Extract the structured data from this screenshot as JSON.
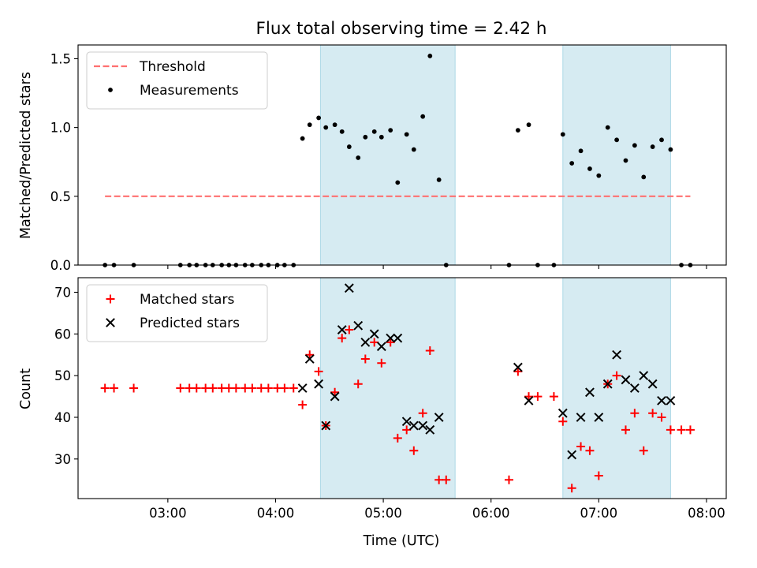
{
  "figure": {
    "title": "Flux total observing time = 2.42 h",
    "xlabel": "Time (UTC)"
  },
  "colors": {
    "threshold": "#ff7070",
    "measurement": "#000000",
    "matched": "#ff0000",
    "predicted": "#000000",
    "span_fill": "#add8e6"
  },
  "chart_data": [
    {
      "type": "scatter",
      "panel": "top",
      "ylabel": "Matched/Predicted stars",
      "xlim": [
        "02:10",
        "08:11"
      ],
      "ylim": [
        0,
        1.6
      ],
      "x_ticks": [
        "03:00",
        "04:00",
        "05:00",
        "06:00",
        "07:00",
        "08:00"
      ],
      "y_ticks": [
        "0.0",
        "0.5",
        "1.0",
        "1.5"
      ],
      "x_tick_labels_shown": false,
      "grid": false,
      "legend_position": "upper-left",
      "shaded_spans": [
        [
          "04:25",
          "05:40"
        ],
        [
          "06:40",
          "07:40"
        ]
      ],
      "threshold": {
        "name": "Threshold",
        "style": "dashed",
        "y": 0.5,
        "x_range": [
          "02:25",
          "07:51"
        ]
      },
      "series": [
        {
          "name": "Measurements",
          "marker": "dot",
          "points": [
            [
              "02:25",
              0
            ],
            [
              "02:30",
              0
            ],
            [
              "02:41",
              0
            ],
            [
              "03:07",
              0
            ],
            [
              "03:12",
              0
            ],
            [
              "03:16",
              0
            ],
            [
              "03:21",
              0
            ],
            [
              "03:25",
              0
            ],
            [
              "03:30",
              0
            ],
            [
              "03:34",
              0
            ],
            [
              "03:38",
              0
            ],
            [
              "03:43",
              0
            ],
            [
              "03:47",
              0
            ],
            [
              "03:52",
              0
            ],
            [
              "03:56",
              0
            ],
            [
              "04:01",
              0
            ],
            [
              "04:05",
              0
            ],
            [
              "04:10",
              0
            ],
            [
              "04:15",
              0.92
            ],
            [
              "04:19",
              1.02
            ],
            [
              "04:24",
              1.07
            ],
            [
              "04:28",
              1.0
            ],
            [
              "04:33",
              1.02
            ],
            [
              "04:37",
              0.97
            ],
            [
              "04:41",
              0.86
            ],
            [
              "04:46",
              0.78
            ],
            [
              "04:50",
              0.93
            ],
            [
              "04:55",
              0.97
            ],
            [
              "04:59",
              0.93
            ],
            [
              "05:04",
              0.98
            ],
            [
              "05:08",
              0.6
            ],
            [
              "05:13",
              0.95
            ],
            [
              "05:17",
              0.84
            ],
            [
              "05:22",
              1.08
            ],
            [
              "05:26",
              1.52
            ],
            [
              "05:31",
              0.62
            ],
            [
              "05:35",
              0
            ],
            [
              "06:10",
              0
            ],
            [
              "06:15",
              0.98
            ],
            [
              "06:21",
              1.02
            ],
            [
              "06:26",
              0
            ],
            [
              "06:35",
              0
            ],
            [
              "06:40",
              0.95
            ],
            [
              "06:45",
              0.74
            ],
            [
              "06:50",
              0.83
            ],
            [
              "06:55",
              0.7
            ],
            [
              "07:00",
              0.65
            ],
            [
              "07:05",
              1.0
            ],
            [
              "07:10",
              0.91
            ],
            [
              "07:15",
              0.76
            ],
            [
              "07:20",
              0.87
            ],
            [
              "07:25",
              0.64
            ],
            [
              "07:30",
              0.86
            ],
            [
              "07:35",
              0.91
            ],
            [
              "07:40",
              0.84
            ],
            [
              "07:46",
              0
            ],
            [
              "07:51",
              0
            ]
          ]
        }
      ]
    },
    {
      "type": "scatter",
      "panel": "bottom",
      "ylabel": "Count",
      "xlim": [
        "02:10",
        "08:11"
      ],
      "ylim": [
        20.5,
        73.5
      ],
      "x_ticks": [
        "03:00",
        "04:00",
        "05:00",
        "06:00",
        "07:00",
        "08:00"
      ],
      "y_ticks": [
        "30",
        "40",
        "50",
        "60",
        "70"
      ],
      "grid": false,
      "legend_position": "upper-left",
      "shaded_spans": [
        [
          "04:25",
          "05:40"
        ],
        [
          "06:40",
          "07:40"
        ]
      ],
      "series": [
        {
          "name": "Matched stars",
          "marker": "plus",
          "points": [
            [
              "02:25",
              47
            ],
            [
              "02:30",
              47
            ],
            [
              "02:41",
              47
            ],
            [
              "03:07",
              47
            ],
            [
              "03:12",
              47
            ],
            [
              "03:16",
              47
            ],
            [
              "03:21",
              47
            ],
            [
              "03:25",
              47
            ],
            [
              "03:30",
              47
            ],
            [
              "03:34",
              47
            ],
            [
              "03:38",
              47
            ],
            [
              "03:43",
              47
            ],
            [
              "03:47",
              47
            ],
            [
              "03:52",
              47
            ],
            [
              "03:56",
              47
            ],
            [
              "04:01",
              47
            ],
            [
              "04:05",
              47
            ],
            [
              "04:10",
              47
            ],
            [
              "04:15",
              43
            ],
            [
              "04:19",
              55
            ],
            [
              "04:24",
              51
            ],
            [
              "04:28",
              38
            ],
            [
              "04:33",
              46
            ],
            [
              "04:37",
              59
            ],
            [
              "04:41",
              61
            ],
            [
              "04:46",
              48
            ],
            [
              "04:50",
              54
            ],
            [
              "04:55",
              58
            ],
            [
              "04:59",
              53
            ],
            [
              "05:04",
              58
            ],
            [
              "05:08",
              35
            ],
            [
              "05:13",
              37
            ],
            [
              "05:17",
              32
            ],
            [
              "05:22",
              41
            ],
            [
              "05:26",
              56
            ],
            [
              "05:31",
              25
            ],
            [
              "05:35",
              25
            ],
            [
              "06:10",
              25
            ],
            [
              "06:15",
              51
            ],
            [
              "06:21",
              45
            ],
            [
              "06:26",
              45
            ],
            [
              "06:35",
              45
            ],
            [
              "06:40",
              39
            ],
            [
              "06:45",
              23
            ],
            [
              "06:50",
              33
            ],
            [
              "06:55",
              32
            ],
            [
              "07:00",
              26
            ],
            [
              "07:05",
              48
            ],
            [
              "07:10",
              50
            ],
            [
              "07:15",
              37
            ],
            [
              "07:20",
              41
            ],
            [
              "07:25",
              32
            ],
            [
              "07:30",
              41
            ],
            [
              "07:35",
              40
            ],
            [
              "07:40",
              37
            ],
            [
              "07:46",
              37
            ],
            [
              "07:51",
              37
            ]
          ]
        },
        {
          "name": "Predicted stars",
          "marker": "x",
          "points": [
            [
              "04:15",
              47
            ],
            [
              "04:19",
              54
            ],
            [
              "04:24",
              48
            ],
            [
              "04:28",
              38
            ],
            [
              "04:33",
              45
            ],
            [
              "04:37",
              61
            ],
            [
              "04:41",
              71
            ],
            [
              "04:46",
              62
            ],
            [
              "04:50",
              58
            ],
            [
              "04:55",
              60
            ],
            [
              "04:59",
              57
            ],
            [
              "05:04",
              59
            ],
            [
              "05:08",
              59
            ],
            [
              "05:13",
              39
            ],
            [
              "05:17",
              38
            ],
            [
              "05:22",
              38
            ],
            [
              "05:26",
              37
            ],
            [
              "05:31",
              40
            ],
            [
              "06:15",
              52
            ],
            [
              "06:21",
              44
            ],
            [
              "06:40",
              41
            ],
            [
              "06:45",
              31
            ],
            [
              "06:50",
              40
            ],
            [
              "06:55",
              46
            ],
            [
              "07:00",
              40
            ],
            [
              "07:05",
              48
            ],
            [
              "07:10",
              55
            ],
            [
              "07:15",
              49
            ],
            [
              "07:20",
              47
            ],
            [
              "07:25",
              50
            ],
            [
              "07:30",
              48
            ],
            [
              "07:35",
              44
            ],
            [
              "07:40",
              44
            ]
          ]
        }
      ]
    }
  ]
}
